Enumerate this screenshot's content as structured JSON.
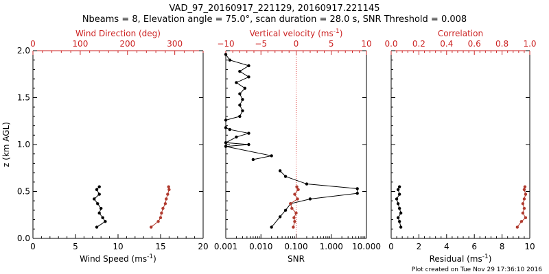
{
  "title_line1": "VAD_97_20160917_221129, 20160917.221145",
  "title_line2": "Nbeams = 8, Elevation angle = 75.0°, scan duration = 28.0 s, SNR Threshold = 0.008",
  "footer": "Plot created on Tue Nov 29 17:36:10 2016",
  "colors": {
    "black": "#000000",
    "red": "#cc2222",
    "dot_red": "#b03a2e",
    "dotted_red": "#dd3333"
  },
  "chart_data": [
    {
      "type": "line",
      "ylabel": "z (km AGL)",
      "ylim": [
        0,
        2.0
      ],
      "yticks": [
        "0.0",
        "0.5",
        "1.0",
        "1.5",
        "2.0"
      ],
      "xlabel_bottom": "Wind Speed (ms",
      "xlabel_bottom_sup": "-1",
      "xlabel_bottom_close": ")",
      "xlim_bottom": [
        0,
        20
      ],
      "xticks_bottom": [
        "0",
        "5",
        "10",
        "15",
        "20"
      ],
      "xlabel_top": "Wind Direction (deg)",
      "xlim_top": [
        0,
        360
      ],
      "xticks_top": [
        "0",
        "100",
        "200",
        "300"
      ],
      "series": [
        {
          "axis": "bottom",
          "color": "#000000",
          "points": [
            [
              7.5,
              0.12
            ],
            [
              8.5,
              0.18
            ],
            [
              8.2,
              0.22
            ],
            [
              7.8,
              0.27
            ],
            [
              8.0,
              0.32
            ],
            [
              7.6,
              0.37
            ],
            [
              7.2,
              0.42
            ],
            [
              7.8,
              0.47
            ],
            [
              7.5,
              0.52
            ],
            [
              7.8,
              0.55
            ]
          ]
        },
        {
          "axis": "top",
          "color": "#b03a2e",
          "points": [
            [
              250,
              0.12
            ],
            [
              265,
              0.18
            ],
            [
              270,
              0.22
            ],
            [
              272,
              0.27
            ],
            [
              275,
              0.32
            ],
            [
              280,
              0.37
            ],
            [
              282,
              0.42
            ],
            [
              285,
              0.47
            ],
            [
              288,
              0.52
            ],
            [
              287,
              0.55
            ]
          ]
        }
      ]
    },
    {
      "type": "line",
      "ylim": [
        0,
        2.0
      ],
      "xlabel_bottom": "SNR",
      "xscale_bottom": "log",
      "xlim_bottom": [
        0.001,
        10
      ],
      "xticks_bottom": [
        "0.001",
        "0.010",
        "0.100",
        "1.000",
        "10.000"
      ],
      "xlabel_top": "Vertical velocity (ms",
      "xlabel_top_sup": "-1",
      "xlabel_top_close": ")",
      "xlim_top": [
        -10,
        10
      ],
      "xticks_top": [
        "−10",
        "−5",
        "0",
        "5",
        "10"
      ],
      "series": [
        {
          "axis": "bottom",
          "color": "#000000",
          "points": [
            [
              0.001,
              1.96
            ],
            [
              0.0013,
              1.9
            ],
            [
              0.0045,
              1.84
            ],
            [
              0.0025,
              1.78
            ],
            [
              0.0045,
              1.72
            ],
            [
              0.002,
              1.66
            ],
            [
              0.0035,
              1.6
            ],
            [
              0.0025,
              1.54
            ],
            [
              0.003,
              1.48
            ],
            [
              0.0025,
              1.42
            ],
            [
              0.003,
              1.36
            ],
            [
              0.0025,
              1.3
            ],
            [
              0.001,
              1.26
            ],
            [
              0.001,
              1.18
            ],
            [
              0.0013,
              1.16
            ],
            [
              0.0045,
              1.12
            ],
            [
              0.002,
              1.08
            ],
            [
              0.001,
              1.02
            ],
            [
              0.0045,
              1.0
            ],
            [
              0.001,
              0.98
            ],
            [
              0.02,
              0.88
            ],
            [
              0.006,
              0.84
            ]
          ]
        },
        {
          "axis": "bottom",
          "color": "#000000",
          "points": [
            [
              0.035,
              0.72
            ],
            [
              0.05,
              0.66
            ],
            [
              0.2,
              0.58
            ],
            [
              5.5,
              0.53
            ],
            [
              5.5,
              0.48
            ],
            [
              0.25,
              0.42
            ],
            [
              0.07,
              0.37
            ],
            [
              0.05,
              0.3
            ],
            [
              0.035,
              0.23
            ],
            [
              0.02,
              0.12
            ]
          ]
        },
        {
          "axis": "top",
          "color": "#b03a2e",
          "points": [
            [
              -0.4,
              0.12
            ],
            [
              -0.2,
              0.18
            ],
            [
              -0.3,
              0.22
            ],
            [
              0.0,
              0.27
            ],
            [
              -0.6,
              0.32
            ],
            [
              -0.8,
              0.37
            ],
            [
              0.2,
              0.42
            ],
            [
              -0.2,
              0.47
            ],
            [
              0.3,
              0.52
            ],
            [
              0.1,
              0.55
            ]
          ]
        }
      ],
      "reference_line_x": 0.1
    },
    {
      "type": "line",
      "ylim": [
        0,
        2.0
      ],
      "xlabel_bottom": "Residual (ms",
      "xlabel_bottom_sup": "-1",
      "xlabel_bottom_close": ")",
      "xlim_bottom": [
        0,
        10
      ],
      "xticks_bottom": [
        "0",
        "2",
        "4",
        "6",
        "8",
        "10"
      ],
      "xlabel_top": "Correlation",
      "xlim_top": [
        0.0,
        1.0
      ],
      "xticks_top": [
        "0.0",
        "0.2",
        "0.4",
        "0.6",
        "0.8",
        "1.0"
      ],
      "series": [
        {
          "axis": "bottom",
          "color": "#000000",
          "points": [
            [
              0.7,
              0.12
            ],
            [
              0.6,
              0.18
            ],
            [
              0.5,
              0.22
            ],
            [
              0.7,
              0.27
            ],
            [
              0.6,
              0.32
            ],
            [
              0.5,
              0.37
            ],
            [
              0.4,
              0.42
            ],
            [
              0.6,
              0.47
            ],
            [
              0.5,
              0.52
            ],
            [
              0.6,
              0.55
            ]
          ]
        },
        {
          "axis": "top",
          "color": "#b03a2e",
          "points": [
            [
              0.91,
              0.12
            ],
            [
              0.94,
              0.18
            ],
            [
              0.97,
              0.22
            ],
            [
              0.95,
              0.27
            ],
            [
              0.96,
              0.32
            ],
            [
              0.95,
              0.37
            ],
            [
              0.96,
              0.42
            ],
            [
              0.97,
              0.47
            ],
            [
              0.96,
              0.52
            ],
            [
              0.965,
              0.55
            ]
          ]
        }
      ]
    }
  ]
}
